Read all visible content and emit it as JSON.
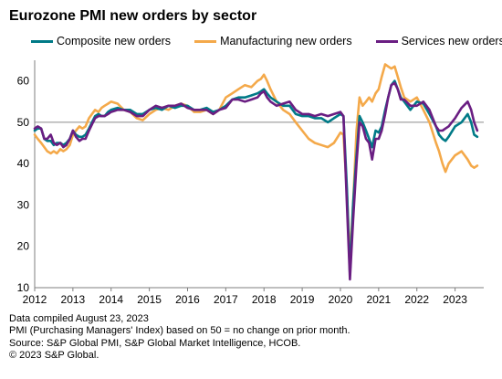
{
  "chart_data": {
    "type": "line",
    "title": "Eurozone PMI new orders by sector",
    "xlabel": "",
    "ylabel": "",
    "xlim": [
      2012.0,
      2023.75
    ],
    "ylim": [
      10,
      65
    ],
    "yticks": [
      10,
      20,
      30,
      40,
      50,
      60
    ],
    "xticks": [
      2012,
      2013,
      2014,
      2015,
      2016,
      2017,
      2018,
      2019,
      2020,
      2021,
      2022,
      2023
    ],
    "reference_line": 50,
    "grid": false,
    "legend_position": "top",
    "series": [
      {
        "name": "Composite new orders",
        "color": "#007a87",
        "x": [
          2012.0,
          2012.08,
          2012.17,
          2012.25,
          2012.33,
          2012.42,
          2012.5,
          2012.58,
          2012.67,
          2012.75,
          2012.83,
          2012.92,
          2013.0,
          2013.08,
          2013.17,
          2013.25,
          2013.33,
          2013.42,
          2013.5,
          2013.58,
          2013.67,
          2013.75,
          2013.83,
          2013.92,
          2014.0,
          2014.17,
          2014.33,
          2014.5,
          2014.67,
          2014.83,
          2015.0,
          2015.17,
          2015.33,
          2015.5,
          2015.67,
          2015.83,
          2016.0,
          2016.17,
          2016.33,
          2016.5,
          2016.67,
          2016.83,
          2017.0,
          2017.17,
          2017.33,
          2017.5,
          2017.67,
          2017.83,
          2017.92,
          2018.0,
          2018.08,
          2018.17,
          2018.33,
          2018.5,
          2018.67,
          2018.83,
          2019.0,
          2019.17,
          2019.33,
          2019.5,
          2019.67,
          2019.83,
          2020.0,
          2020.08,
          2020.17,
          2020.25,
          2020.33,
          2020.42,
          2020.5,
          2020.58,
          2020.67,
          2020.75,
          2020.83,
          2020.92,
          2021.0,
          2021.08,
          2021.17,
          2021.25,
          2021.33,
          2021.42,
          2021.5,
          2021.58,
          2021.67,
          2021.83,
          2022.0,
          2022.17,
          2022.33,
          2022.5,
          2022.58,
          2022.67,
          2022.75,
          2022.83,
          2023.0,
          2023.17,
          2023.33,
          2023.42,
          2023.5,
          2023.58
        ],
        "values": [
          48,
          48.5,
          48.5,
          46,
          45.5,
          45.5,
          44.5,
          45,
          45,
          44.5,
          45,
          46,
          48,
          47,
          46.5,
          46.5,
          47,
          48.5,
          50,
          51.5,
          52,
          51.5,
          51.5,
          52.5,
          53,
          53.5,
          53,
          53,
          52,
          52,
          53,
          53.5,
          53,
          54,
          53.5,
          54,
          54,
          53,
          53,
          53.5,
          52.5,
          53,
          54,
          55.5,
          56,
          56,
          56.5,
          57,
          57.5,
          58,
          57,
          56,
          55,
          54,
          54,
          52,
          51.5,
          51.5,
          51,
          51,
          50,
          51,
          52,
          51.5,
          34,
          13,
          30,
          42,
          51.5,
          50,
          48,
          46,
          44,
          48,
          47.5,
          49,
          53,
          56,
          59,
          60,
          58,
          56,
          55,
          53,
          55,
          54.5,
          52,
          49,
          47,
          46,
          45.5,
          46.5,
          49,
          50,
          52,
          50,
          47,
          46.5
        ]
      },
      {
        "name": "Manufacturing new orders",
        "color": "#f4a94a",
        "x": [
          2012.0,
          2012.08,
          2012.17,
          2012.25,
          2012.33,
          2012.42,
          2012.5,
          2012.58,
          2012.67,
          2012.75,
          2012.83,
          2012.92,
          2013.0,
          2013.08,
          2013.17,
          2013.25,
          2013.33,
          2013.42,
          2013.5,
          2013.58,
          2013.67,
          2013.75,
          2013.83,
          2013.92,
          2014.0,
          2014.17,
          2014.33,
          2014.5,
          2014.67,
          2014.83,
          2015.0,
          2015.17,
          2015.33,
          2015.5,
          2015.67,
          2015.83,
          2016.0,
          2016.17,
          2016.33,
          2016.5,
          2016.67,
          2016.83,
          2017.0,
          2017.17,
          2017.33,
          2017.5,
          2017.67,
          2017.83,
          2017.92,
          2018.0,
          2018.08,
          2018.17,
          2018.33,
          2018.5,
          2018.67,
          2018.83,
          2019.0,
          2019.17,
          2019.33,
          2019.5,
          2019.67,
          2019.83,
          2020.0,
          2020.08,
          2020.17,
          2020.25,
          2020.33,
          2020.42,
          2020.5,
          2020.58,
          2020.67,
          2020.75,
          2020.83,
          2020.92,
          2021.0,
          2021.08,
          2021.17,
          2021.25,
          2021.33,
          2021.42,
          2021.5,
          2021.58,
          2021.67,
          2021.83,
          2022.0,
          2022.17,
          2022.33,
          2022.5,
          2022.58,
          2022.67,
          2022.75,
          2022.83,
          2023.0,
          2023.17,
          2023.33,
          2023.42,
          2023.5,
          2023.58
        ],
        "values": [
          47,
          46,
          45,
          44,
          43,
          42.5,
          43,
          42.5,
          43.5,
          43,
          43.5,
          44.5,
          47,
          48,
          49,
          48.5,
          49,
          51,
          52,
          53,
          52.5,
          53.5,
          54,
          54.5,
          55,
          54.5,
          53,
          52.5,
          51,
          50.5,
          52,
          53,
          53.5,
          53,
          54,
          54.5,
          54,
          52.5,
          52.5,
          53,
          52,
          53,
          56,
          57,
          58,
          59,
          58.5,
          60,
          60.5,
          61.5,
          60,
          58,
          55,
          53,
          52,
          50,
          48,
          46,
          45,
          44.5,
          44,
          45,
          47.5,
          47,
          33,
          17,
          30,
          48,
          56,
          54,
          55,
          56,
          55,
          57,
          58,
          61,
          64,
          63.5,
          63,
          63.5,
          61,
          58.5,
          56,
          55,
          56,
          53,
          50,
          45,
          43,
          40,
          38,
          40,
          42,
          43,
          41,
          39.5,
          39,
          39.5
        ]
      },
      {
        "name": "Services new orders",
        "color": "#6a1e82",
        "x": [
          2012.0,
          2012.08,
          2012.17,
          2012.25,
          2012.33,
          2012.42,
          2012.5,
          2012.58,
          2012.67,
          2012.75,
          2012.83,
          2012.92,
          2013.0,
          2013.08,
          2013.17,
          2013.25,
          2013.33,
          2013.42,
          2013.5,
          2013.58,
          2013.67,
          2013.75,
          2013.83,
          2013.92,
          2014.0,
          2014.17,
          2014.33,
          2014.5,
          2014.67,
          2014.83,
          2015.0,
          2015.17,
          2015.33,
          2015.5,
          2015.67,
          2015.83,
          2016.0,
          2016.17,
          2016.33,
          2016.5,
          2016.67,
          2016.83,
          2017.0,
          2017.17,
          2017.33,
          2017.5,
          2017.67,
          2017.83,
          2017.92,
          2018.0,
          2018.08,
          2018.17,
          2018.33,
          2018.5,
          2018.67,
          2018.83,
          2019.0,
          2019.17,
          2019.33,
          2019.5,
          2019.67,
          2019.83,
          2020.0,
          2020.08,
          2020.17,
          2020.25,
          2020.33,
          2020.42,
          2020.5,
          2020.58,
          2020.67,
          2020.75,
          2020.83,
          2020.92,
          2021.0,
          2021.08,
          2021.17,
          2021.25,
          2021.33,
          2021.42,
          2021.5,
          2021.58,
          2021.67,
          2021.83,
          2022.0,
          2022.17,
          2022.33,
          2022.5,
          2022.58,
          2022.67,
          2022.75,
          2022.83,
          2023.0,
          2023.17,
          2023.33,
          2023.42,
          2023.5,
          2023.58
        ],
        "values": [
          48.5,
          49,
          48.5,
          46,
          46,
          47,
          45,
          44.5,
          45,
          44,
          44.5,
          46,
          48,
          46.5,
          45.5,
          46,
          46,
          48,
          49.5,
          51,
          51.5,
          51.5,
          51.5,
          52,
          52.5,
          53,
          53,
          52.5,
          51.5,
          51.5,
          53,
          54,
          53.5,
          54,
          54,
          54.5,
          53.5,
          53,
          53,
          53,
          52,
          53,
          53.5,
          55.5,
          55.5,
          55,
          55.5,
          56,
          57,
          57.5,
          56,
          55,
          54,
          54.5,
          55,
          53,
          52,
          52,
          51.5,
          52,
          51.5,
          52,
          52.5,
          51.5,
          30,
          12,
          26,
          40,
          50,
          49,
          46,
          45,
          41,
          46,
          46,
          48,
          52,
          56,
          59,
          59.5,
          58,
          55.5,
          55.5,
          54,
          54,
          55,
          53,
          49,
          48,
          48,
          48.5,
          49,
          51,
          53.5,
          55,
          53,
          50,
          48
        ]
      }
    ]
  },
  "title": "Eurozone PMI new orders by sector",
  "legend": [
    {
      "label": "Composite new orders",
      "color": "#007a87"
    },
    {
      "label": "Manufacturing new orders",
      "color": "#f4a94a"
    },
    {
      "label": "Services new orders",
      "color": "#6a1e82"
    }
  ],
  "footnotes": {
    "line1": "Data compiled August 23, 2023",
    "line2": "PMI (Purchasing Managers' Index) based on 50 = no change on prior month.",
    "line3": "Source: S&P Global PMI, S&P Global Market Intelligence, HCOB.",
    "line4": "© 2023 S&P Global."
  }
}
